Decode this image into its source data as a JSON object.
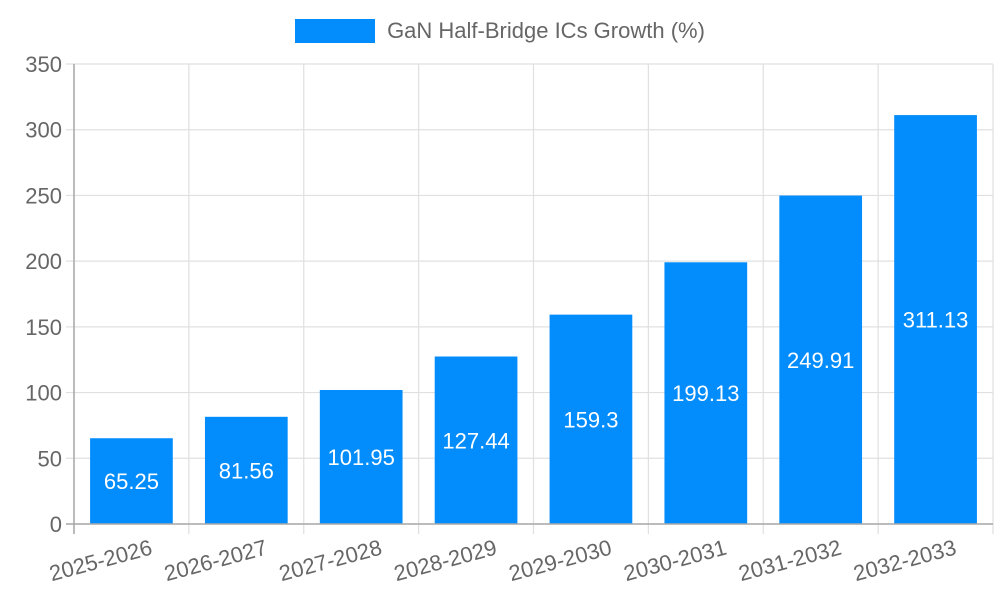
{
  "legend": {
    "label": "GaN Half-Bridge ICs Growth (%)",
    "color": "#038cfc"
  },
  "chart_data": {
    "type": "bar",
    "title": "",
    "categories": [
      "2025-2026",
      "2026-2027",
      "2027-2028",
      "2028-2029",
      "2029-2030",
      "2030-2031",
      "2031-2032",
      "2032-2033"
    ],
    "series": [
      {
        "name": "GaN Half-Bridge ICs Growth (%)",
        "values": [
          65.25,
          81.56,
          101.95,
          127.44,
          159.3,
          199.13,
          249.91,
          311.13
        ],
        "color": "#038cfc"
      }
    ],
    "data_labels": [
      "65.25",
      "81.56",
      "101.95",
      "127.44",
      "159.3",
      "199.13",
      "249.91",
      "311.13"
    ],
    "xlabel": "",
    "ylabel": "",
    "ylim": [
      0,
      350
    ],
    "yticks": [
      0,
      50,
      100,
      150,
      200,
      250,
      300,
      350
    ],
    "grid": true,
    "legend_position": "top"
  }
}
